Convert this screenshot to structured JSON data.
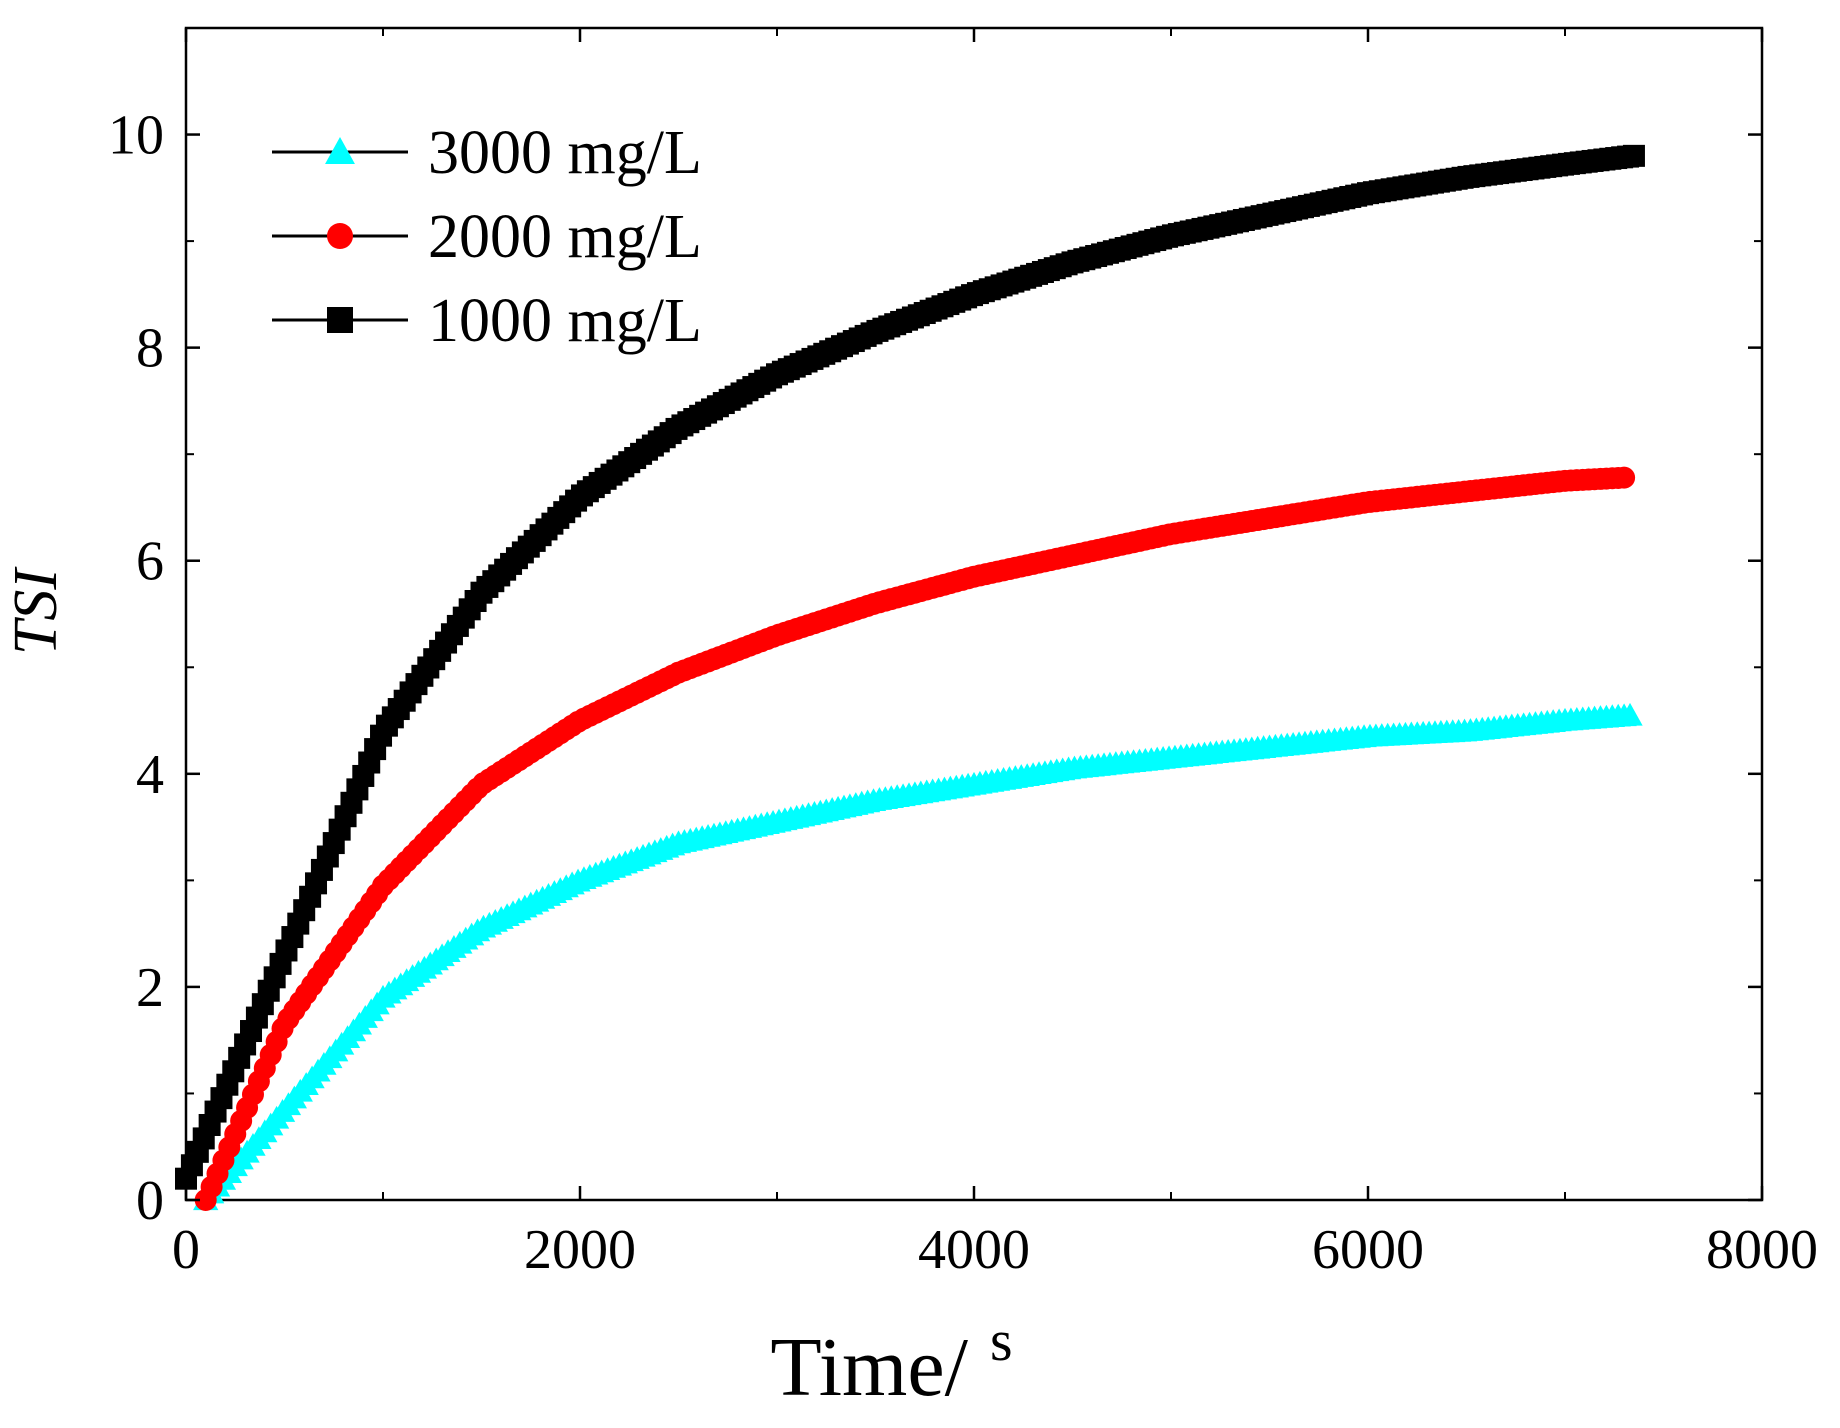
{
  "chart_data": {
    "type": "scatter",
    "title": "",
    "xlabel": "Time/",
    "xunit": "s",
    "ylabel": "TSI",
    "xlim": [
      0,
      8000
    ],
    "ylim": [
      0,
      11
    ],
    "xticks": [
      0,
      2000,
      4000,
      6000,
      8000
    ],
    "yticks": [
      0,
      2,
      4,
      6,
      8,
      10
    ],
    "grid": false,
    "legend_position": "top-left",
    "series": [
      {
        "name": "3000 mg/L",
        "color": "#00ffff",
        "marker": "triangle",
        "x": [
          100,
          500,
          1000,
          1500,
          2000,
          2500,
          3000,
          3500,
          4000,
          4500,
          5000,
          5500,
          6000,
          6500,
          7000,
          7350
        ],
        "y": [
          0,
          0.85,
          1.9,
          2.55,
          3.0,
          3.35,
          3.55,
          3.75,
          3.9,
          4.05,
          4.15,
          4.25,
          4.35,
          4.4,
          4.5,
          4.55
        ]
      },
      {
        "name": "2000 mg/L",
        "color": "#ff0000",
        "marker": "circle",
        "x": [
          100,
          500,
          1000,
          1500,
          2000,
          2500,
          3000,
          3500,
          4000,
          4500,
          5000,
          5500,
          6000,
          6500,
          7000,
          7300
        ],
        "y": [
          0,
          1.65,
          2.95,
          3.9,
          4.5,
          4.95,
          5.3,
          5.6,
          5.85,
          6.05,
          6.25,
          6.4,
          6.55,
          6.65,
          6.75,
          6.78
        ]
      },
      {
        "name": "1000 mg/L",
        "color": "#000000",
        "marker": "square",
        "x": [
          0,
          500,
          1000,
          1500,
          2000,
          2500,
          3000,
          3500,
          4000,
          4500,
          5000,
          5500,
          6000,
          6500,
          7000,
          7350
        ],
        "y": [
          0.2,
          2.3,
          4.4,
          5.7,
          6.6,
          7.25,
          7.75,
          8.15,
          8.5,
          8.8,
          9.05,
          9.25,
          9.45,
          9.6,
          9.72,
          9.8
        ]
      }
    ]
  }
}
